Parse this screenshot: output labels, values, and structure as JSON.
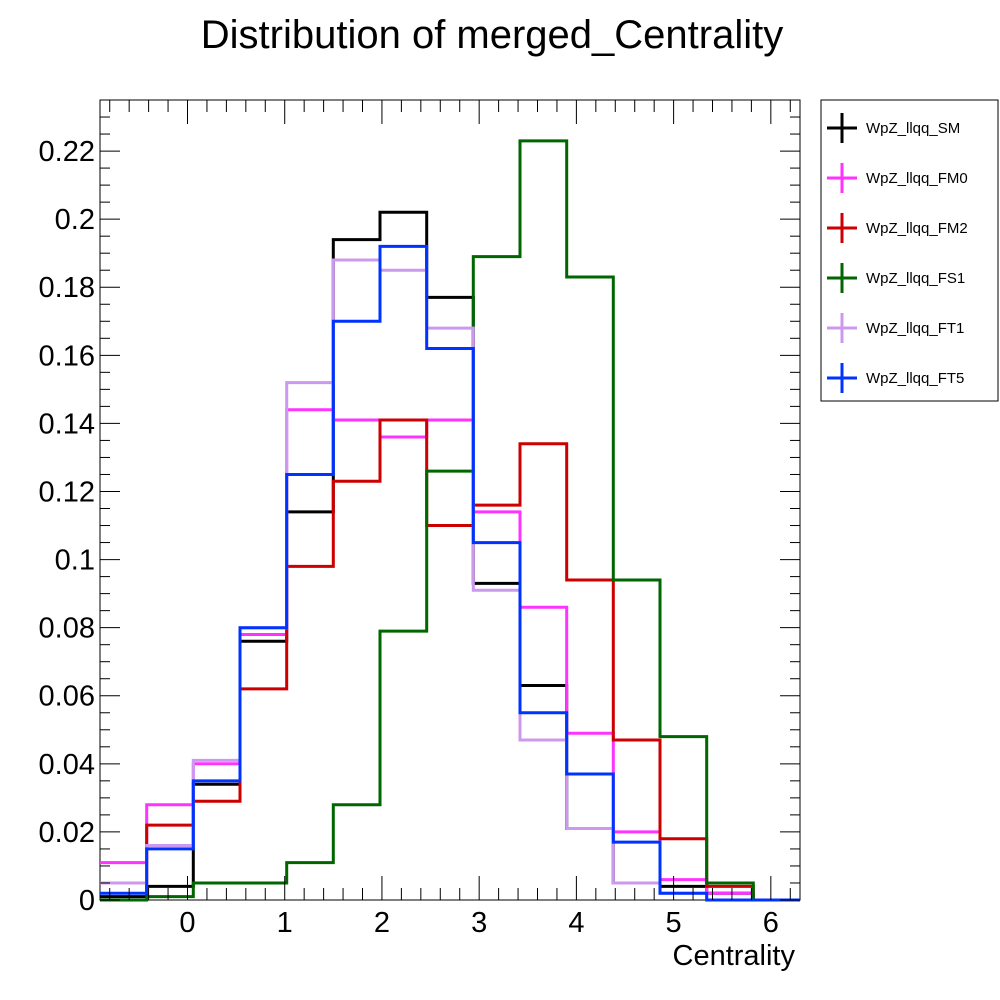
{
  "chart_data": {
    "type": "histogram-step",
    "title": "Distribution of merged_Centrality",
    "xlabel": "Centrality",
    "ylabel": "",
    "xlim": [
      -0.9,
      6.3
    ],
    "ylim": [
      0,
      0.235
    ],
    "x_ticks": [
      0,
      1,
      2,
      3,
      4,
      5,
      6
    ],
    "y_ticks": [
      0,
      0.02,
      0.04,
      0.06,
      0.08,
      0.1,
      0.12,
      0.14,
      0.16,
      0.18,
      0.2,
      0.22
    ],
    "y_tick_labels": [
      "0",
      "0.02",
      "0.04",
      "0.06",
      "0.08",
      "0.1",
      "0.12",
      "0.14",
      "0.16",
      "0.18",
      "0.2",
      "0.22"
    ],
    "x_tick_labels": [
      "0",
      "1",
      "2",
      "3",
      "4",
      "5",
      "6"
    ],
    "bin_edges": [
      -0.9,
      -0.42,
      0.06,
      0.54,
      1.02,
      1.5,
      1.98,
      2.46,
      2.94,
      3.42,
      3.9,
      4.38,
      4.86,
      5.34,
      5.82,
      6.3
    ],
    "legend_position": "top-right outside",
    "grid": false,
    "series": [
      {
        "name": "WpZ_llqq_SM",
        "color": "#000000",
        "values": [
          0.001,
          0.004,
          0.034,
          0.076,
          0.114,
          0.194,
          0.202,
          0.177,
          0.093,
          0.063,
          0.021,
          0.005,
          0.004,
          0.002,
          0.0
        ]
      },
      {
        "name": "WpZ_llqq_FM0",
        "color": "#ff33ff",
        "values": [
          0.011,
          0.028,
          0.04,
          0.078,
          0.144,
          0.141,
          0.136,
          0.141,
          0.114,
          0.086,
          0.049,
          0.02,
          0.006,
          0.002,
          0.0
        ]
      },
      {
        "name": "WpZ_llqq_FM2",
        "color": "#cc0000",
        "values": [
          0.005,
          0.022,
          0.029,
          0.062,
          0.098,
          0.123,
          0.141,
          0.11,
          0.116,
          0.134,
          0.094,
          0.047,
          0.018,
          0.004,
          0.0
        ]
      },
      {
        "name": "WpZ_llqq_FS1",
        "color": "#006600",
        "values": [
          0.0,
          0.001,
          0.005,
          0.005,
          0.011,
          0.028,
          0.079,
          0.126,
          0.189,
          0.223,
          0.183,
          0.094,
          0.048,
          0.005,
          0.0
        ]
      },
      {
        "name": "WpZ_llqq_FT1",
        "color": "#cc99ee",
        "values": [
          0.005,
          0.016,
          0.041,
          0.08,
          0.152,
          0.188,
          0.185,
          0.168,
          0.091,
          0.047,
          0.021,
          0.005,
          0.002,
          0.0,
          0.0
        ]
      },
      {
        "name": "WpZ_llqq_FT5",
        "color": "#0033ff",
        "values": [
          0.002,
          0.015,
          0.035,
          0.08,
          0.125,
          0.17,
          0.192,
          0.162,
          0.105,
          0.055,
          0.037,
          0.017,
          0.002,
          0.0,
          0.0
        ]
      }
    ]
  }
}
